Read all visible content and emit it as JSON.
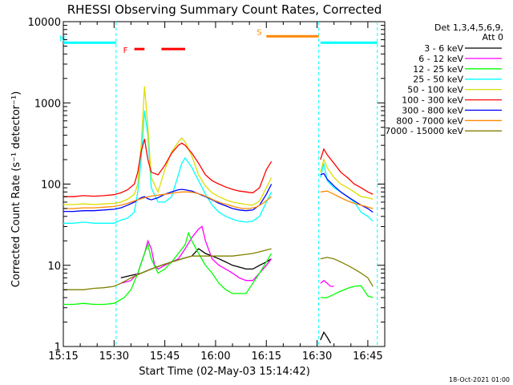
{
  "chart_data": {
    "type": "line",
    "title": "RHESSI Observing Summary Count Rates, Corrected",
    "xlabel": "Start Time (02-May-03 15:14:42)",
    "ylabel": "Corrected Count Rate (s⁻¹ detector⁻¹)",
    "yscale": "log",
    "xlim_minutes": [
      0,
      95
    ],
    "ylim": [
      1,
      10000
    ],
    "x_ticks": [
      {
        "t": 0,
        "label": "15:15"
      },
      {
        "t": 15,
        "label": "15:30"
      },
      {
        "t": 30,
        "label": "15:45"
      },
      {
        "t": 45,
        "label": "16:00"
      },
      {
        "t": 60,
        "label": "16:15"
      },
      {
        "t": 75,
        "label": "16:30"
      },
      {
        "t": 90,
        "label": "16:45"
      }
    ],
    "y_ticks": [
      {
        "v": 1,
        "label": "1"
      },
      {
        "v": 10,
        "label": "10"
      },
      {
        "v": 100,
        "label": "100"
      },
      {
        "v": 1000,
        "label": "1000"
      },
      {
        "v": 10000,
        "label": "10000"
      }
    ],
    "legend": {
      "header": [
        "Det 1,3,4,5,6,9,",
        "Att 0"
      ],
      "position": "top-right"
    },
    "series": [
      {
        "name": "3 - 6 keV",
        "color": "#000000",
        "segments": [
          {
            "x": [
              17,
              20,
              23,
              26,
              29,
              32,
              35,
              38,
              40,
              42,
              44,
              46,
              48,
              50,
              52,
              54,
              56,
              58,
              60,
              61.5
            ],
            "y": [
              7,
              7.5,
              8,
              9,
              10,
              11,
              12,
              13,
              16,
              14,
              13,
              12,
              11,
              10,
              9.5,
              9,
              9,
              10,
              11,
              12
            ]
          },
          {
            "x": [
              76,
              77,
              78,
              79
            ],
            "y": [
              1.2,
              1.5,
              1.3,
              1.1
            ]
          }
        ]
      },
      {
        "name": "6 - 12 keV",
        "color": "#ff00ff",
        "segments": [
          {
            "x": [
              17,
              20,
              22,
              24,
              25,
              26,
              27,
              28,
              30,
              32,
              34,
              36,
              38,
              40,
              41,
              42,
              44,
              46,
              48,
              50,
              52,
              54,
              56,
              58,
              60,
              61.5
            ],
            "y": [
              6,
              6.5,
              8,
              14,
              20,
              16,
              10,
              9,
              10,
              11,
              12,
              16,
              22,
              28,
              30,
              20,
              12,
              10,
              9,
              8,
              7,
              6.5,
              6.5,
              8,
              10,
              12
            ]
          },
          {
            "x": [
              76,
              77,
              78,
              79,
              80
            ],
            "y": [
              6,
              6.5,
              6,
              5.5,
              5.5
            ]
          }
        ]
      },
      {
        "name": "12 - 25 keV",
        "color": "#00ff00",
        "segments": [
          {
            "x": [
              0,
              3,
              6,
              9,
              12,
              15,
              18,
              20,
              22,
              24,
              25,
              26,
              28,
              30,
              32,
              34,
              36,
              37,
              38,
              40,
              42,
              44,
              46,
              48,
              50,
              52,
              54,
              56,
              58,
              60,
              61.5
            ],
            "y": [
              3.3,
              3.3,
              3.4,
              3.3,
              3.3,
              3.4,
              4,
              5,
              8,
              14,
              18,
              12,
              8,
              9,
              11,
              14,
              18,
              25,
              20,
              14,
              10,
              8,
              6,
              5,
              4.5,
              4.5,
              4.5,
              6,
              8,
              11,
              14
            ]
          },
          {
            "x": [
              76,
              78,
              80,
              82,
              84,
              86,
              88,
              90,
              91.5
            ],
            "y": [
              4,
              4,
              4.4,
              4.8,
              5.2,
              5.5,
              5.6,
              4.2,
              4
            ]
          }
        ]
      },
      {
        "name": "25 - 50 keV",
        "color": "#00ffff",
        "segments": [
          {
            "x": [
              0,
              3,
              6,
              9,
              12,
              15,
              17,
              19,
              21,
              22,
              23,
              24,
              25,
              26,
              28,
              30,
              32,
              34,
              35,
              36,
              38,
              40,
              42,
              44,
              46,
              48,
              50,
              52,
              54,
              56,
              58,
              60,
              61.5
            ],
            "y": [
              33,
              33,
              34,
              33,
              33,
              33,
              36,
              38,
              45,
              80,
              200,
              800,
              400,
              90,
              60,
              60,
              70,
              130,
              180,
              210,
              160,
              110,
              75,
              55,
              45,
              40,
              37,
              35,
              34,
              35,
              40,
              60,
              80
            ]
          },
          {
            "x": [
              76,
              77,
              78,
              80,
              82,
              84,
              86,
              88,
              90,
              91.5
            ],
            "y": [
              120,
              180,
              110,
              90,
              80,
              70,
              60,
              45,
              40,
              35
            ]
          }
        ]
      },
      {
        "name": "50 - 100 keV",
        "color": "#dddd00",
        "segments": [
          {
            "x": [
              0,
              3,
              6,
              9,
              12,
              15,
              17,
              19,
              21,
              22,
              23,
              24,
              25,
              26,
              28,
              30,
              32,
              34,
              35,
              36,
              38,
              40,
              42,
              44,
              46,
              48,
              50,
              52,
              54,
              56,
              58,
              60,
              61.5
            ],
            "y": [
              56,
              56,
              57,
              56,
              57,
              58,
              60,
              65,
              75,
              100,
              300,
              1600,
              500,
              120,
              80,
              150,
              250,
              330,
              370,
              330,
              220,
              130,
              95,
              78,
              70,
              64,
              60,
              58,
              56,
              55,
              62,
              90,
              120
            ]
          },
          {
            "x": [
              76,
              77,
              78,
              80,
              82,
              84,
              86,
              88,
              90,
              91.5
            ],
            "y": [
              140,
              200,
              160,
              120,
              100,
              90,
              80,
              70,
              68,
              65
            ]
          }
        ]
      },
      {
        "name": "100 - 300 keV",
        "color": "#ff0000",
        "segments": [
          {
            "x": [
              0,
              3,
              6,
              9,
              12,
              15,
              17,
              19,
              21,
              22,
              23,
              24,
              25,
              26,
              28,
              30,
              32,
              34,
              35,
              36,
              38,
              40,
              42,
              44,
              46,
              48,
              50,
              52,
              54,
              56,
              58,
              60,
              61.5
            ],
            "y": [
              70,
              70,
              72,
              71,
              72,
              74,
              78,
              85,
              100,
              140,
              250,
              360,
              200,
              140,
              130,
              170,
              240,
              300,
              320,
              300,
              240,
              180,
              130,
              110,
              100,
              92,
              86,
              82,
              80,
              78,
              90,
              150,
              190
            ]
          },
          {
            "x": [
              76,
              77,
              78,
              80,
              82,
              84,
              86,
              88,
              90,
              91.5
            ],
            "y": [
              200,
              270,
              230,
              180,
              140,
              120,
              100,
              90,
              80,
              75
            ]
          }
        ]
      },
      {
        "name": "300 - 800 keV",
        "color": "#0000ff",
        "segments": [
          {
            "x": [
              0,
              3,
              6,
              9,
              12,
              15,
              17,
              19,
              21,
              22,
              23,
              24,
              25,
              26,
              28,
              30,
              32,
              34,
              35,
              36,
              38,
              40,
              42,
              44,
              46,
              48,
              50,
              52,
              54,
              56,
              58,
              60,
              61.5
            ],
            "y": [
              46,
              46,
              47,
              47,
              48,
              49,
              51,
              55,
              60,
              64,
              68,
              70,
              66,
              64,
              68,
              75,
              80,
              85,
              86,
              85,
              82,
              76,
              70,
              64,
              58,
              54,
              50,
              48,
              47,
              48,
              55,
              75,
              100
            ]
          },
          {
            "x": [
              76,
              77,
              78,
              80,
              82,
              84,
              86,
              88,
              90,
              91.5
            ],
            "y": [
              130,
              135,
              115,
              95,
              80,
              70,
              62,
              55,
              50,
              45
            ]
          }
        ]
      },
      {
        "name": "800 - 7000 keV",
        "color": "#ff8800",
        "segments": [
          {
            "x": [
              0,
              3,
              6,
              9,
              12,
              15,
              17,
              19,
              21,
              23,
              25,
              27,
              29,
              31,
              33,
              35,
              37,
              39,
              41,
              43,
              45,
              47,
              49,
              51,
              53,
              55,
              57,
              59,
              61.5
            ],
            "y": [
              50,
              50,
              51,
              51,
              52,
              53,
              55,
              58,
              62,
              66,
              70,
              72,
              74,
              76,
              78,
              80,
              80,
              78,
              74,
              68,
              62,
              58,
              55,
              52,
              50,
              50,
              52,
              58,
              70
            ]
          },
          {
            "x": [
              76,
              78,
              80,
              82,
              84,
              86,
              88,
              90,
              91.5
            ],
            "y": [
              80,
              82,
              75,
              68,
              62,
              58,
              55,
              52,
              50
            ]
          }
        ]
      },
      {
        "name": "7000 - 15000 keV",
        "color": "#808000",
        "segments": [
          {
            "x": [
              0,
              3,
              6,
              9,
              12,
              15,
              17,
              20,
              23,
              26,
              29,
              32,
              35,
              38,
              41,
              44,
              47,
              50,
              53,
              56,
              59,
              61.5
            ],
            "y": [
              5,
              5,
              5,
              5.2,
              5.3,
              5.5,
              6,
              7,
              8,
              9,
              10,
              11,
              12,
              13,
              13,
              13,
              13,
              13,
              13.5,
              14,
              15,
              16
            ]
          },
          {
            "x": [
              76,
              78,
              80,
              82,
              84,
              86,
              88,
              90,
              91.5
            ],
            "y": [
              12,
              12.5,
              12,
              11,
              10,
              9,
              8,
              7,
              5.5
            ]
          }
        ]
      }
    ],
    "flag_bars": [
      {
        "label": "N",
        "color": "#00ffff",
        "y": 5500,
        "segments": [
          [
            0,
            15.6
          ],
          [
            76,
            92.8
          ]
        ]
      },
      {
        "label": "F",
        "color": "#ff0000",
        "y": 4600,
        "segments": [
          [
            21,
            24
          ],
          [
            29,
            36
          ]
        ]
      },
      {
        "label": "S",
        "color": "#ff8800",
        "y": 6600,
        "segments": [
          [
            60,
            75.5
          ]
        ]
      }
    ],
    "dashed_lines": [
      {
        "color": "#00ffff",
        "x": 15.6
      },
      {
        "color": "#00ffff",
        "x": 75.5
      },
      {
        "color": "#00ffff",
        "x": 92.8
      }
    ],
    "footer": "18-Oct-2021 01:00"
  }
}
